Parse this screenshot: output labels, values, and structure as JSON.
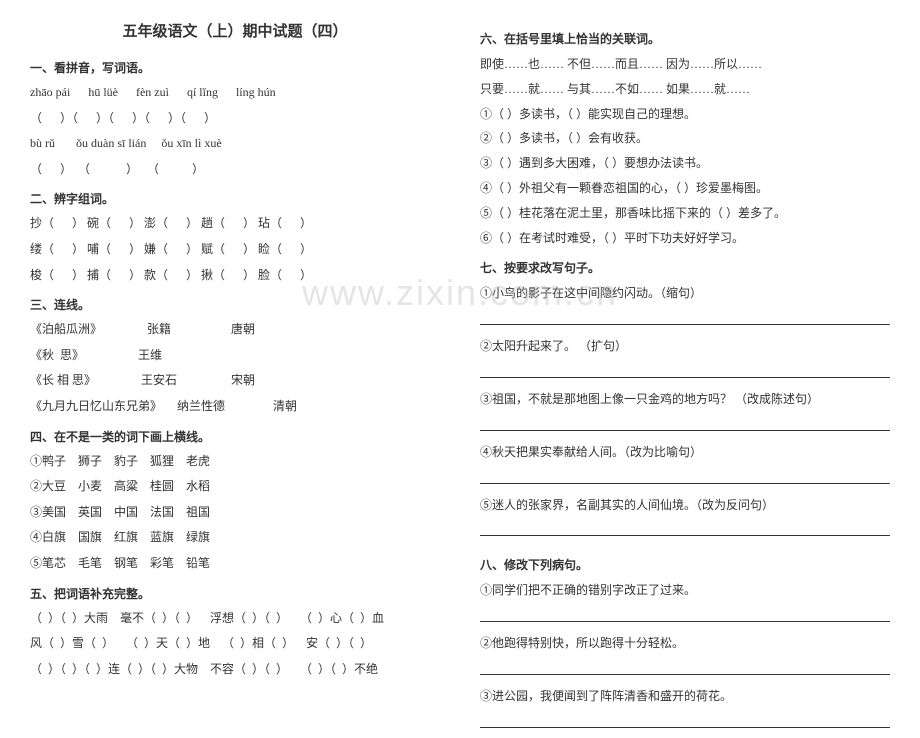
{
  "watermark": "www.zixin.com.cn",
  "col_left": {
    "title": "五年级语文（上）期中试题（四）",
    "s1": {
      "head": "一、看拼音，写词语。",
      "pinyin1": "zhāo pái      hū lüè      fèn zuì      qí lǐng      líng hún",
      "paren1": "（      ）（      ）（      ）（      ）（      ）",
      "pinyin2": "bù rǔ       ǒu duàn sī lián     ǒu xīn lì xuè",
      "paren2": "（      ）  （            ）   （           ）"
    },
    "s2": {
      "head": "二、辨字组词。",
      "r1": "抄（      ） 碗（      ） 澎（      ） 趟（      ） 玷（      ）",
      "r2": "缕（      ） 哺（      ） 嫌（      ） 赋（      ） 睑（      ）",
      "r3": "梭（      ） 捕（      ） 款（      ） 揪（      ） 脸（      ）"
    },
    "s3": {
      "head": "三、连线。",
      "r1": "《泊船瓜洲》               张籍                    唐朝",
      "r2": "《秋  思》                  王维",
      "r3": "《长 相 思》               王安石                  宋朝",
      "r4": "《九月九日忆山东兄弟》     纳兰性德                清朝"
    },
    "s4": {
      "head": "四、在不是一类的词下画上横线。",
      "r1": "①鸭子    狮子    豹子    狐狸    老虎",
      "r2": "②大豆    小麦    高粱    桂圆    水稻",
      "r3": "③美国    英国    中国    法国    祖国",
      "r4": "④白旗    国旗    红旗    蓝旗    绿旗",
      "r5": "⑤笔芯    毛笔    钢笔    彩笔    铅笔"
    },
    "s5": {
      "head": "五、把词语补充完整。",
      "r1": "（  ）（  ）大雨    毫不（  ）（  ）    浮想（  ）（  ）    （  ）心（  ）血",
      "r2": "风（  ）雪（  ）    （  ）天（  ）地    （  ）相（  ）    安（  ）（  ）",
      "r3": "（  ）（  ）（  ）连（  ）（  ）大物    不容（  ）（  ）    （  ）（  ）不绝"
    }
  },
  "col_right": {
    "s6": {
      "head": "六、在括号里填上恰当的关联词。",
      "r0a": "即使……也……      不但……而且……      因为……所以……",
      "r0b": "只要……就……      与其……不如……      如果……就……",
      "r1": "①（      ）多读书，（      ）能实现自己的理想。",
      "r2": "②（      ）多读书，（      ）会有收获。",
      "r3": "③（      ）遇到多大困难，（      ）要想办法读书。",
      "r4": "④（      ）外祖父有一颗眷恋祖国的心，（      ）珍爱墨梅图。",
      "r5": "⑤（      ）桂花落在泥土里，那香味比摇下来的（      ）差多了。",
      "r6": "⑥（      ）在考试时难受，（      ）平时下功夫好好学习。"
    },
    "s7": {
      "head": "七、按要求改写句子。",
      "r1": "①小鸟的影子在这中间隐约闪动。（缩句）",
      "r2": "②太阳升起来了。  （扩句）",
      "r3": "③祖国，不就是那地图上像一只金鸡的地方吗？  （改成陈述句）",
      "r4": "④秋天把果实奉献给人间。（改为比喻句）",
      "r5": "⑤迷人的张家界，名副其实的人间仙境。（改为反问句）"
    },
    "s8": {
      "head": "八、修改下列病句。",
      "r1": "①同学们把不正确的错别字改正了过来。",
      "r2": "②他跑得特别快，所以跑得十分轻松。",
      "r3": "③进公园，我便闻到了阵阵清香和盛开的荷花。"
    }
  }
}
